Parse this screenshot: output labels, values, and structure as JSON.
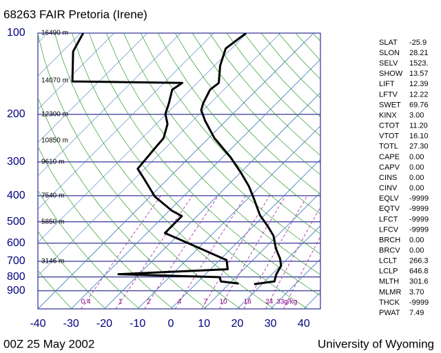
{
  "chart_data": {
    "type": "skewt",
    "title": "68263 FAIR Pretoria (Irene)",
    "footer_left": "00Z 25 May 2002",
    "footer_right": "University of Wyoming",
    "ylim": [
      100,
      1050
    ],
    "log_y": true,
    "yticks": [
      100,
      200,
      300,
      400,
      500,
      600,
      700,
      800,
      900
    ],
    "xlim": [
      -40,
      45
    ],
    "xticks": [
      -40,
      -30,
      -20,
      -10,
      0,
      10,
      20,
      30,
      40
    ],
    "heights": [
      {
        "pressure": 100,
        "label": "16490 m"
      },
      {
        "pressure": 150,
        "label": "14070 m"
      },
      {
        "pressure": 200,
        "label": "12300 m"
      },
      {
        "pressure": 250,
        "label": "10850 m"
      },
      {
        "pressure": 300,
        "label": "9610 m"
      },
      {
        "pressure": 400,
        "label": "7540 m"
      },
      {
        "pressure": 500,
        "label": "5850 m"
      },
      {
        "pressure": 700,
        "label": "3146 m"
      }
    ],
    "mixing_ratios": [
      0.4,
      1,
      2,
      4,
      7,
      10,
      16,
      24,
      {
        "value": 33,
        "label": "33g/kg"
      }
    ],
    "series": [
      {
        "color": "#000000",
        "pressure": [
          100,
          114,
          132,
          153,
          162,
          182,
          193,
          211,
          245,
          288,
          328,
          369,
          415,
          472,
          519,
          563,
          627,
          685,
          727,
          781,
          831,
          850
        ],
        "values": [
          -60.3,
          -61.8,
          -58.3,
          -53.5,
          -54.1,
          -52.1,
          -50.6,
          -46.3,
          -38.2,
          -27.7,
          -20.0,
          -13.4,
          -7.6,
          -1.4,
          4.3,
          8.9,
          13.4,
          17.8,
          20.2,
          21.3,
          22.9,
          17.6
        ]
      },
      {
        "color": "#000000",
        "pressure": [
          100,
          117,
          151,
          153,
          162,
          182,
          199,
          217,
          245,
          267,
          318,
          348,
          403,
          454,
          476,
          550,
          609,
          693,
          749,
          781,
          801,
          831,
          846
        ],
        "values": [
          -109.3,
          -106.8,
          -98,
          -64.5,
          -65.5,
          -62.4,
          -60.3,
          -56.6,
          -53.5,
          -53.1,
          -52.1,
          -46.9,
          -38.6,
          -29.3,
          -24.6,
          -24.6,
          -12.8,
          2.1,
          5.2,
          -26.2,
          5.2,
          6.8,
          12.8
        ]
      }
    ],
    "indices": [
      [
        "SLAT",
        "-25.9"
      ],
      [
        "SLON",
        "28.21"
      ],
      [
        "SELV",
        "1523."
      ],
      [
        "SHOW",
        "13.57"
      ],
      [
        "LIFT",
        "12.39"
      ],
      [
        "LFTV",
        "12.22"
      ],
      [
        "SWET",
        "69.76"
      ],
      [
        "KINX",
        "3.00"
      ],
      [
        "CTOT",
        "11.20"
      ],
      [
        "VTOT",
        "16.10"
      ],
      [
        "TOTL",
        "27.30"
      ],
      [
        "CAPE",
        "0.00"
      ],
      [
        "CAPV",
        "0.00"
      ],
      [
        "CINS",
        "0.00"
      ],
      [
        "CINV",
        "0.00"
      ],
      [
        "EQLV",
        "-9999"
      ],
      [
        "EQTV",
        "-9999"
      ],
      [
        "LFCT",
        "-9999"
      ],
      [
        "LFCV",
        "-9999"
      ],
      [
        "BRCH",
        "0.00"
      ],
      [
        "BRCV",
        "0.00"
      ],
      [
        "LCLT",
        "266.3"
      ],
      [
        "LCLP",
        "646.8"
      ],
      [
        "MLTH",
        "301.6"
      ],
      [
        "MLMR",
        "3.70"
      ],
      [
        "THCK",
        "-9999"
      ],
      [
        "PWAT",
        "7.49"
      ]
    ]
  }
}
